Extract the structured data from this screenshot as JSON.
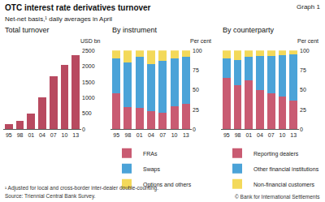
{
  "title": "OTC interest rate derivatives turnover",
  "subtitle": "Net-net basis,¹ daily averages in April",
  "graph_label": "Graph 1",
  "footnote": "¹ Adjusted for local and cross-border inter-dealer double-counting.",
  "source": "Source: Triennial Central Bank Survey.",
  "copyright": "© Bank for International Settlements",
  "chart_data": [
    {
      "type": "bar",
      "title": "Total turnover",
      "ylabel": "USD bn",
      "categories": [
        "95",
        "98",
        "01",
        "04",
        "07",
        "10",
        "13"
      ],
      "values": [
        151,
        265,
        489,
        1025,
        1686,
        2054,
        2343
      ],
      "color": "#b84a60",
      "ylim": [
        0,
        2500
      ],
      "yticks": [
        0,
        500,
        1000,
        1500,
        2000,
        2500
      ],
      "grid": false
    },
    {
      "type": "bar",
      "title": "By instrument",
      "ylabel": "Per cent",
      "stacked": true,
      "legend": "bottom",
      "categories": [
        "95",
        "98",
        "01",
        "04",
        "07",
        "10",
        "13"
      ],
      "series": [
        {
          "name": "FRAs",
          "color": "#c95b72",
          "values": [
            46,
            28,
            27,
            23,
            21,
            29,
            32
          ]
        },
        {
          "name": "Swaps",
          "color": "#4ba3d8",
          "values": [
            44,
            57,
            65,
            60,
            66,
            61,
            60
          ]
        },
        {
          "name": "Options and others",
          "color": "#f3d95a",
          "values": [
            10,
            15,
            8,
            17,
            13,
            10,
            8
          ]
        }
      ],
      "ylim": [
        0,
        100
      ],
      "yticks": [
        0,
        25,
        50,
        75,
        100
      ],
      "grid": false
    },
    {
      "type": "bar",
      "title": "By counterparty",
      "ylabel": "Per cent",
      "stacked": true,
      "legend": "bottom",
      "categories": [
        "95",
        "98",
        "01",
        "04",
        "07",
        "10",
        "13"
      ],
      "series": [
        {
          "name": "Reporting dealers",
          "color": "#c95b72",
          "values": [
            65,
            56,
            62,
            50,
            46,
            42,
            36
          ]
        },
        {
          "name": "Other financial institutions",
          "color": "#4ba3d8",
          "values": [
            25,
            32,
            30,
            43,
            47,
            52,
            59
          ]
        },
        {
          "name": "Non-financial customers",
          "color": "#f3d95a",
          "values": [
            10,
            12,
            8,
            7,
            7,
            6,
            5
          ]
        }
      ],
      "ylim": [
        0,
        100
      ],
      "yticks": [
        0,
        25,
        50,
        75,
        100
      ],
      "grid": false
    }
  ]
}
